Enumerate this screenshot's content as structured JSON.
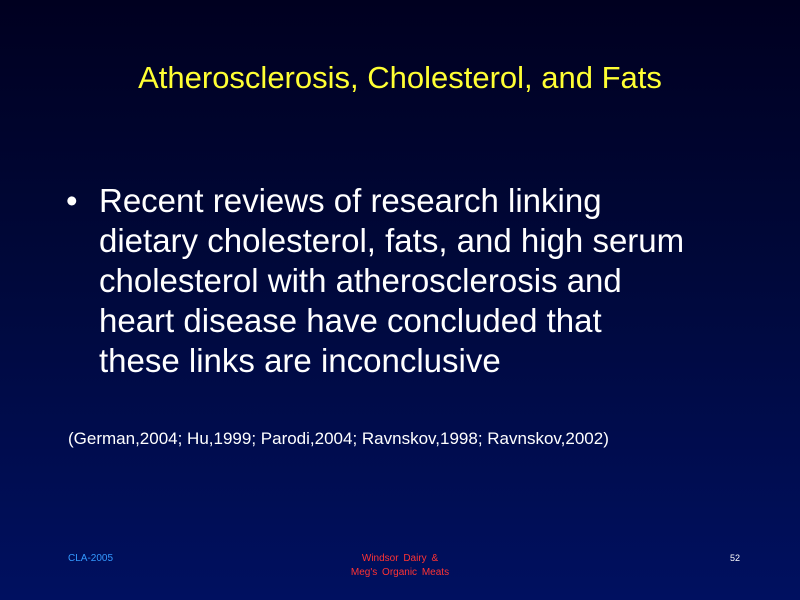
{
  "slide": {
    "title": "Atherosclerosis, Cholesterol, and Fats",
    "bullet": {
      "marker": "•",
      "lines": [
        "Recent reviews of research linking",
        "dietary cholesterol, fats, and high serum",
        "cholesterol with atherosclerosis and",
        "heart disease have concluded that",
        "these links are inconclusive"
      ]
    },
    "citation": "(German,2004; Hu,1999; Parodi,2004; Ravnskov,1998; Ravnskov,2002)"
  },
  "footer": {
    "left": "CLA-2005",
    "center_line1": "Windsor  Dairy  &",
    "center_line2": "Meg's  Organic  Meats",
    "page_number": "52"
  },
  "colors": {
    "title": "#ffff33",
    "body_text": "#ffffff",
    "footer_left": "#3399ff",
    "footer_center": "#ff3333",
    "background_top": "#000020",
    "background_bottom": "#001060"
  }
}
